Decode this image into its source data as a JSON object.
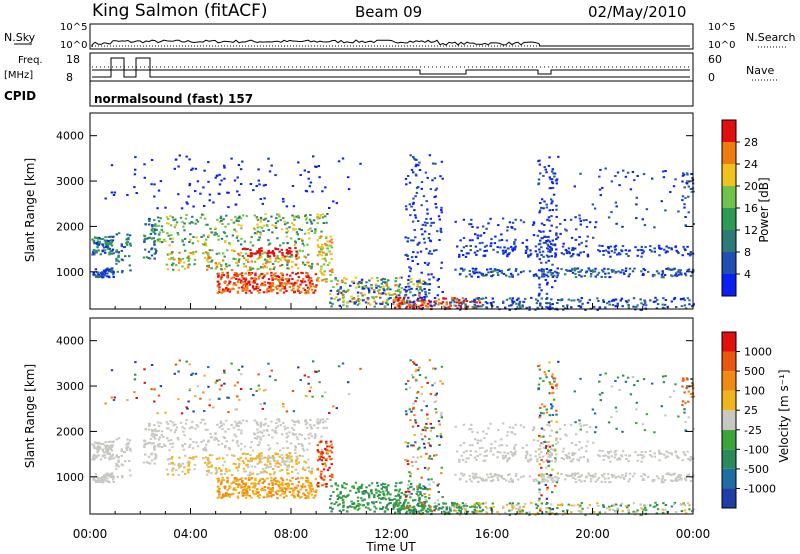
{
  "header": {
    "station": "King Salmon (fitACF)",
    "beam": "Beam 09",
    "date": "02/May/2010"
  },
  "top_panel": {
    "nsky_label": "N.Sky",
    "nsky_ticks": [
      "10^5",
      "10^0"
    ],
    "nsearch_label": "N.Search",
    "freq_label_1": "Freq.",
    "freq_label_2": "[MHz]",
    "freq_ticks": [
      "18",
      "8"
    ],
    "nave_ticks": [
      "60",
      "0"
    ],
    "nave_label": "Nave",
    "cpid_label": "CPID",
    "program": "normalsound (fast) 157"
  },
  "colors": {
    "power_scale": [
      "#0a20f0",
      "#1f4fb3",
      "#2c7a78",
      "#2f9a55",
      "#6fc24a",
      "#f0c21e",
      "#f07b12",
      "#e01010"
    ],
    "velocity_scale": [
      "#1e3fa5",
      "#1f6ea3",
      "#2c8a5a",
      "#3da43a",
      "#c8c8c2",
      "#f0b41e",
      "#f08a14",
      "#e8580f",
      "#e01010"
    ]
  },
  "chart_data": [
    {
      "type": "heatmap",
      "panel": "power",
      "ylabel": "Slant Range [km]",
      "xlabel": "Time UT",
      "x_ticks": [
        "00:00",
        "04:00",
        "08:00",
        "12:00",
        "16:00",
        "20:00",
        "00:00"
      ],
      "y_ticks": [
        "1000",
        "2000",
        "3000",
        "4000"
      ],
      "xlim_hours": [
        0,
        24
      ],
      "ylim_km": [
        180,
        4500
      ],
      "colorbar_label": "Power [dB]",
      "colorbar_ticks": [
        "4",
        "8",
        "12",
        "16",
        "20",
        "24",
        "28"
      ]
    },
    {
      "type": "heatmap",
      "panel": "velocity",
      "ylabel": "Slant Range [km]",
      "xlabel": "Time UT",
      "x_ticks": [
        "00:00",
        "04:00",
        "08:00",
        "12:00",
        "16:00",
        "20:00",
        "00:00"
      ],
      "y_ticks": [
        "1000",
        "2000",
        "3000",
        "4000"
      ],
      "xlim_hours": [
        0,
        24
      ],
      "ylim_km": [
        180,
        4500
      ],
      "colorbar_label": "Velocity [m s⁻¹]",
      "colorbar_ticks": [
        "1000",
        "500",
        "100",
        "25",
        "-25",
        "-100",
        "-500",
        "-1000"
      ]
    }
  ]
}
